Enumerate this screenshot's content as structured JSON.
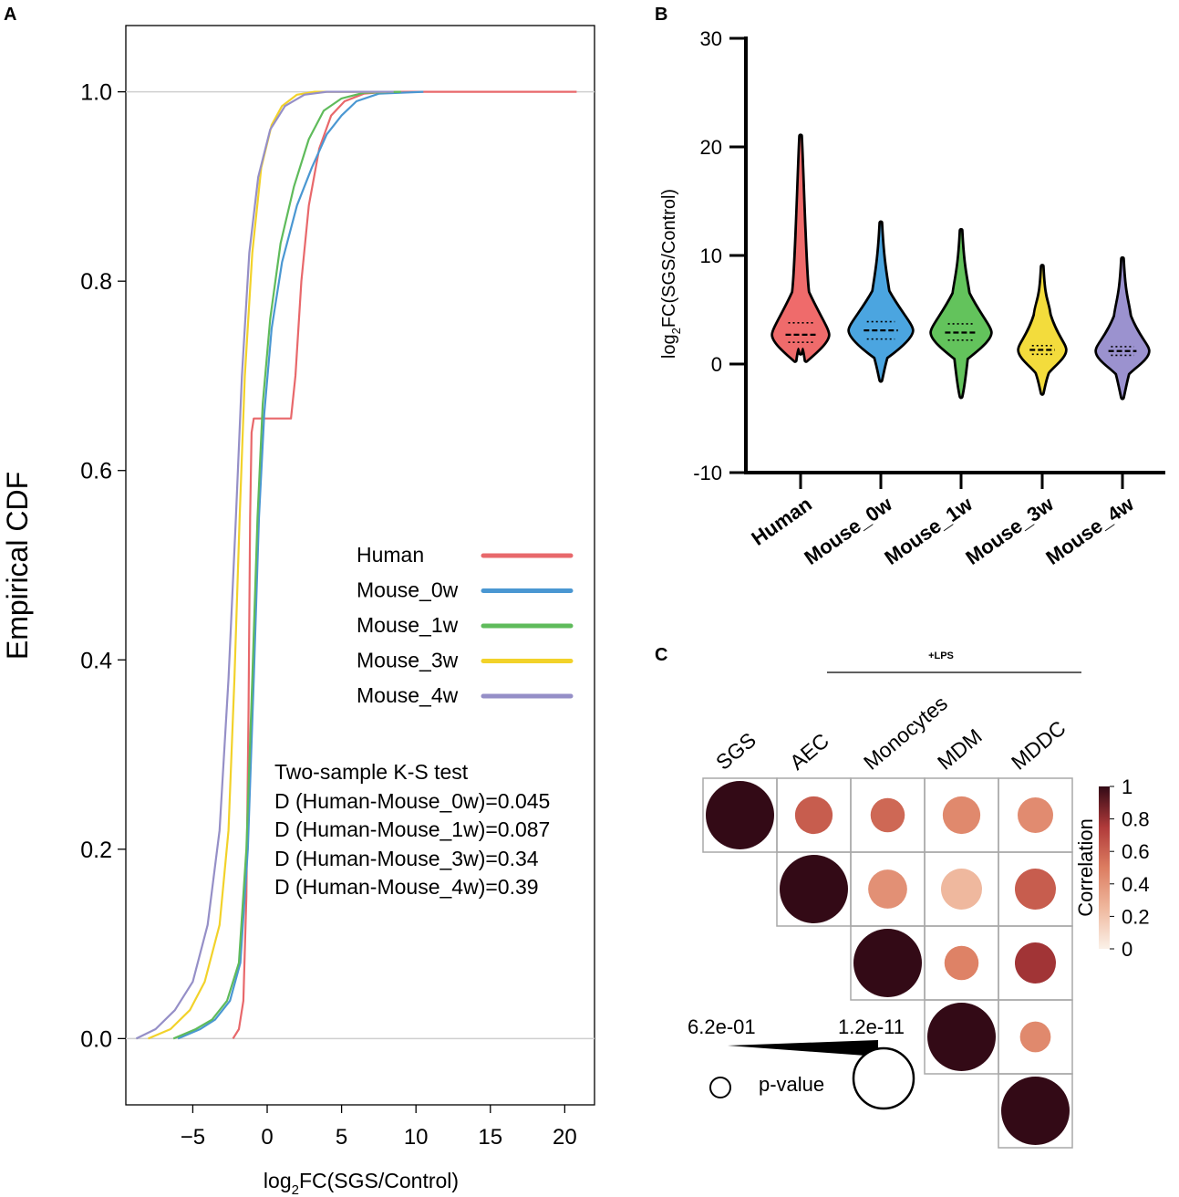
{
  "panels": {
    "a": "A",
    "b": "B",
    "c": "C"
  },
  "chart_data": [
    {
      "id": "ecdf",
      "type": "line",
      "title": "",
      "xlabel_main": "log",
      "xlabel_sub": "2",
      "xlabel_rest": "FC(SGS/Control)",
      "ylabel": "Empirical CDF",
      "xlim": [
        -9.5,
        22
      ],
      "ylim": [
        -0.07,
        1.07
      ],
      "xticks": [
        -5,
        0,
        5,
        10,
        15,
        20
      ],
      "xtick_labels": [
        "−5",
        "0",
        "5",
        "10",
        "15",
        "20"
      ],
      "yticks": [
        0.0,
        0.2,
        0.4,
        0.6,
        0.8,
        1.0
      ],
      "ytick_labels": [
        "0.0",
        "0.2",
        "0.4",
        "0.6",
        "0.8",
        "1.0"
      ],
      "legend_position": "center-right",
      "series": [
        {
          "name": "Human",
          "color": "#e8686b",
          "points": [
            [
              -2.3,
              0.0
            ],
            [
              -1.9,
              0.01
            ],
            [
              -1.6,
              0.04
            ],
            [
              -1.4,
              0.15
            ],
            [
              -1.25,
              0.35
            ],
            [
              -1.15,
              0.55
            ],
            [
              -1.05,
              0.64
            ],
            [
              -0.9,
              0.655
            ],
            [
              1.6,
              0.655
            ],
            [
              1.9,
              0.7
            ],
            [
              2.3,
              0.8
            ],
            [
              2.8,
              0.88
            ],
            [
              3.5,
              0.94
            ],
            [
              4.3,
              0.975
            ],
            [
              5.2,
              0.99
            ],
            [
              6.5,
              0.998
            ],
            [
              8.0,
              1.0
            ],
            [
              20.8,
              1.0
            ]
          ]
        },
        {
          "name": "Mouse_0w",
          "color": "#4a97d2",
          "points": [
            [
              -6.0,
              0.0
            ],
            [
              -4.5,
              0.01
            ],
            [
              -3.5,
              0.02
            ],
            [
              -2.5,
              0.04
            ],
            [
              -1.8,
              0.08
            ],
            [
              -1.3,
              0.2
            ],
            [
              -0.9,
              0.38
            ],
            [
              -0.55,
              0.55
            ],
            [
              -0.2,
              0.66
            ],
            [
              0.3,
              0.75
            ],
            [
              1.0,
              0.82
            ],
            [
              2.0,
              0.88
            ],
            [
              3.0,
              0.92
            ],
            [
              4.0,
              0.955
            ],
            [
              5.0,
              0.975
            ],
            [
              6.0,
              0.99
            ],
            [
              7.5,
              0.998
            ],
            [
              10.5,
              1.0
            ]
          ]
        },
        {
          "name": "Mouse_1w",
          "color": "#5fbb5b",
          "points": [
            [
              -6.3,
              0.0
            ],
            [
              -4.8,
              0.01
            ],
            [
              -3.7,
              0.02
            ],
            [
              -2.7,
              0.04
            ],
            [
              -1.9,
              0.08
            ],
            [
              -1.4,
              0.2
            ],
            [
              -1.0,
              0.38
            ],
            [
              -0.65,
              0.55
            ],
            [
              -0.3,
              0.67
            ],
            [
              0.2,
              0.76
            ],
            [
              0.9,
              0.84
            ],
            [
              1.8,
              0.9
            ],
            [
              2.8,
              0.95
            ],
            [
              3.8,
              0.98
            ],
            [
              5.0,
              0.993
            ],
            [
              6.5,
              0.999
            ],
            [
              9.0,
              1.0
            ]
          ]
        },
        {
          "name": "Mouse_3w",
          "color": "#f2d22a",
          "points": [
            [
              -8.0,
              0.0
            ],
            [
              -6.5,
              0.01
            ],
            [
              -5.2,
              0.03
            ],
            [
              -4.2,
              0.06
            ],
            [
              -3.2,
              0.12
            ],
            [
              -2.6,
              0.22
            ],
            [
              -2.2,
              0.38
            ],
            [
              -1.85,
              0.55
            ],
            [
              -1.5,
              0.7
            ],
            [
              -1.0,
              0.83
            ],
            [
              -0.4,
              0.92
            ],
            [
              0.3,
              0.965
            ],
            [
              1.0,
              0.985
            ],
            [
              2.0,
              0.997
            ],
            [
              3.2,
              1.0
            ],
            [
              8.0,
              1.0
            ]
          ]
        },
        {
          "name": "Mouse_4w",
          "color": "#958fc7",
          "points": [
            [
              -8.8,
              0.0
            ],
            [
              -7.5,
              0.01
            ],
            [
              -6.2,
              0.03
            ],
            [
              -5.0,
              0.06
            ],
            [
              -4.0,
              0.12
            ],
            [
              -3.2,
              0.22
            ],
            [
              -2.6,
              0.38
            ],
            [
              -2.1,
              0.55
            ],
            [
              -1.7,
              0.7
            ],
            [
              -1.2,
              0.83
            ],
            [
              -0.6,
              0.91
            ],
            [
              0.2,
              0.96
            ],
            [
              1.2,
              0.985
            ],
            [
              2.5,
              0.997
            ],
            [
              4.0,
              1.0
            ],
            [
              8.5,
              1.0
            ]
          ]
        }
      ],
      "test_title": "Two-sample K-S test",
      "test_lines": [
        "D (Human-Mouse_0w)=0.045",
        "D (Human-Mouse_1w)=0.087",
        "D (Human-Mouse_3w)=0.34",
        "D (Human-Mouse_4w)=0.39"
      ]
    },
    {
      "id": "violin",
      "type": "violin",
      "ylabel_main": "log",
      "ylabel_sub": "2",
      "ylabel_rest": "FC(SGS/Control)",
      "ylim": [
        -10,
        30
      ],
      "yticks": [
        -10,
        0,
        10,
        20,
        30
      ],
      "ytick_labels": [
        "-10",
        "0",
        "10",
        "20",
        "30"
      ],
      "categories": [
        "Human",
        "Mouse_0w",
        "Mouse_1w",
        "Mouse_3w",
        "Mouse_4w"
      ],
      "colors": [
        "#ef6b6b",
        "#4ba5e0",
        "#63c35c",
        "#f3dc3c",
        "#9b92cf"
      ],
      "median": [
        2.7,
        3.1,
        2.9,
        1.3,
        1.2
      ],
      "q1": [
        2.0,
        2.3,
        2.2,
        0.9,
        0.8
      ],
      "q3": [
        3.8,
        3.9,
        3.7,
        1.7,
        1.6
      ],
      "min": [
        1.0,
        -1.5,
        -3.0,
        -2.7,
        -3.1
      ],
      "max": [
        21.0,
        13.0,
        12.3,
        9.0,
        9.7
      ]
    },
    {
      "id": "corrplot",
      "type": "heatmap",
      "labels": [
        "SGS",
        "AEC",
        "Monocytes",
        "MDM",
        "MDDC"
      ],
      "group_label": "+LPS",
      "colorbar_title": "Correlation",
      "colorbar_ticks": [
        0,
        0.2,
        0.4,
        0.6,
        0.8,
        1
      ],
      "colorbar_tick_labels": [
        "0",
        "0.2",
        "0.4",
        "0.6",
        "0.8",
        "1"
      ],
      "matrix": [
        [
          1.0,
          0.62,
          0.58,
          0.45,
          0.44
        ],
        [
          null,
          1.0,
          0.42,
          0.25,
          0.62
        ],
        [
          null,
          null,
          1.0,
          0.48,
          0.78
        ],
        [
          null,
          null,
          null,
          1.0,
          0.45
        ],
        [
          null,
          null,
          null,
          null,
          1.0
        ]
      ],
      "radius_scale": [
        [
          1.0,
          0.55,
          0.5,
          0.55,
          0.52
        ],
        [
          null,
          1.0,
          0.57,
          0.6,
          0.6
        ],
        [
          null,
          null,
          1.0,
          0.5,
          0.6
        ],
        [
          null,
          null,
          null,
          1.0,
          0.45
        ],
        [
          null,
          null,
          null,
          null,
          1.0
        ]
      ],
      "pvalue_label": "p-value",
      "pvalue_high": "6.2e-01",
      "pvalue_low": "1.2e-11"
    }
  ]
}
